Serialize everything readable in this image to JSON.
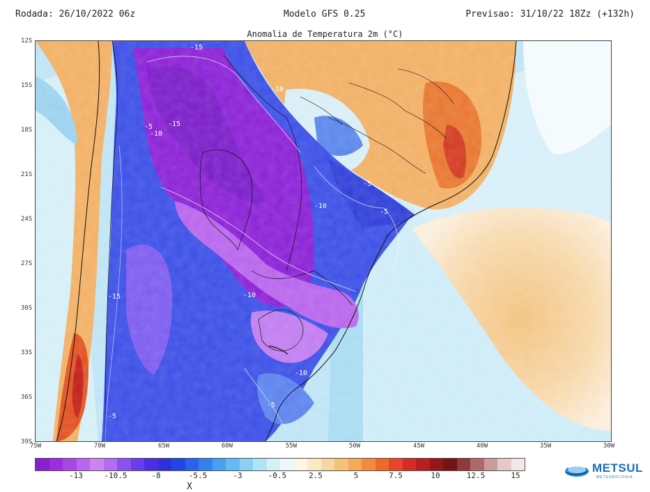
{
  "header": {
    "left": "Rodada: 26/10/2022 06z",
    "center": "Modelo GFS 0.25",
    "right": "Previsao: 31/10/22 18Zz (+132h)"
  },
  "map": {
    "title": "Anomalia de Temperatura 2m (°C)",
    "lat_ticks": [
      "12S",
      "15S",
      "18S",
      "21S",
      "24S",
      "27S",
      "30S",
      "33S",
      "36S",
      "39S"
    ],
    "lon_ticks": [
      "75W",
      "70W",
      "65W",
      "60W",
      "55W",
      "50W",
      "45W",
      "40W",
      "35W",
      "30W"
    ],
    "contour_labels": [
      "-15",
      "-10",
      "-15",
      "-5",
      "-10",
      "-5",
      "-10",
      "-5",
      "-15",
      "-10",
      "-10",
      "-5",
      "-5"
    ]
  },
  "colorbar": {
    "colors": [
      "#8a1fd0",
      "#9a2ee0",
      "#aa46e8",
      "#bb64ee",
      "#cc84f2",
      "#b46cf0",
      "#8c50f0",
      "#6a3cf0",
      "#4a2ee6",
      "#3030d8",
      "#2246e6",
      "#2a62ec",
      "#3480f0",
      "#48a0f2",
      "#66baf4",
      "#8ad0f6",
      "#b0e2f8",
      "#d6f0fa",
      "#eef8fc",
      "#fdf6e6",
      "#fbe8c4",
      "#f8d6a0",
      "#f6c27a",
      "#f4aa56",
      "#f28c3a",
      "#ee6a2a",
      "#e8462a",
      "#d82a26",
      "#b81e20",
      "#941818",
      "#741414",
      "#8e3a3a",
      "#ae6a6a",
      "#cc9c9c",
      "#e6c8c8",
      "#f6e6e6"
    ],
    "labels": [
      "-13",
      "-10.5",
      "-8",
      "-5.5",
      "-3",
      "-0.5",
      "2.5",
      "5",
      "7.5",
      "10",
      "12.5",
      "15"
    ],
    "unit": "X"
  },
  "logo": {
    "name": "METSUL",
    "subtitle": "METEOROLOGIA"
  }
}
